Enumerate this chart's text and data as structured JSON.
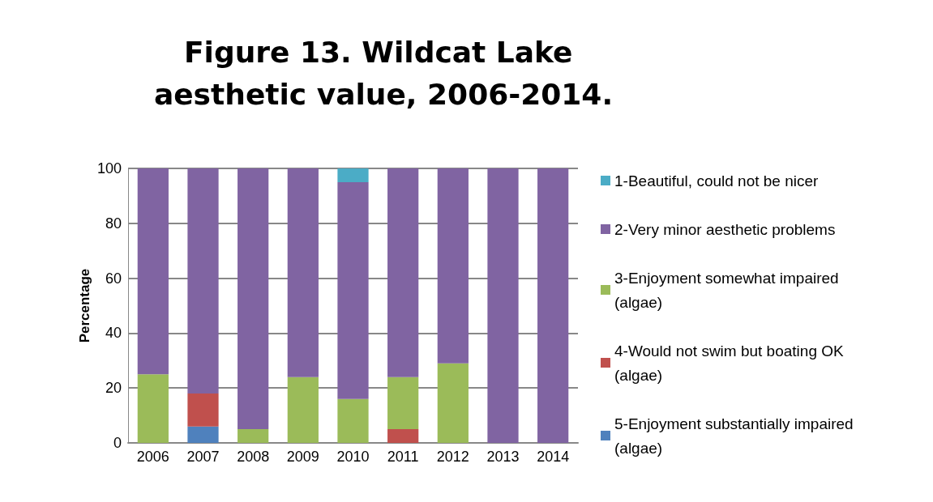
{
  "chart_data": {
    "type": "bar",
    "title": "Figure 13. Wildcat Lake aesthetic value, 2006-2014.",
    "ylabel": "Percentage",
    "categories": [
      "2006",
      "2007",
      "2008",
      "2009",
      "2010",
      "2011",
      "2012",
      "2013",
      "2014"
    ],
    "stacked": true,
    "ylim": [
      0,
      100
    ],
    "yticks": [
      0,
      20,
      40,
      60,
      80,
      100
    ],
    "grid": "y",
    "legend": "right",
    "series": [
      {
        "name": "5-Enjoyment substantially impaired (algae)",
        "color": "#4f81bd",
        "values": [
          0,
          6,
          0,
          0,
          0,
          0,
          0,
          0,
          0
        ]
      },
      {
        "name": "4-Would not swim but boating OK (algae)",
        "color": "#c0504d",
        "values": [
          0,
          12,
          0,
          0,
          0,
          5,
          0,
          0,
          0
        ]
      },
      {
        "name": "3-Enjoyment somewhat impaired (algae)",
        "color": "#9bbb59",
        "values": [
          25,
          0,
          5,
          24,
          16,
          19,
          29,
          0,
          0
        ]
      },
      {
        "name": "2-Very minor aesthetic problems",
        "color": "#8064a2",
        "values": [
          75,
          82,
          95,
          76,
          79,
          76,
          71,
          100,
          100
        ]
      },
      {
        "name": "1-Beautiful, could not be nicer",
        "color": "#4bacc6",
        "values": [
          0,
          0,
          0,
          0,
          5,
          0,
          0,
          0,
          0
        ]
      }
    ]
  }
}
